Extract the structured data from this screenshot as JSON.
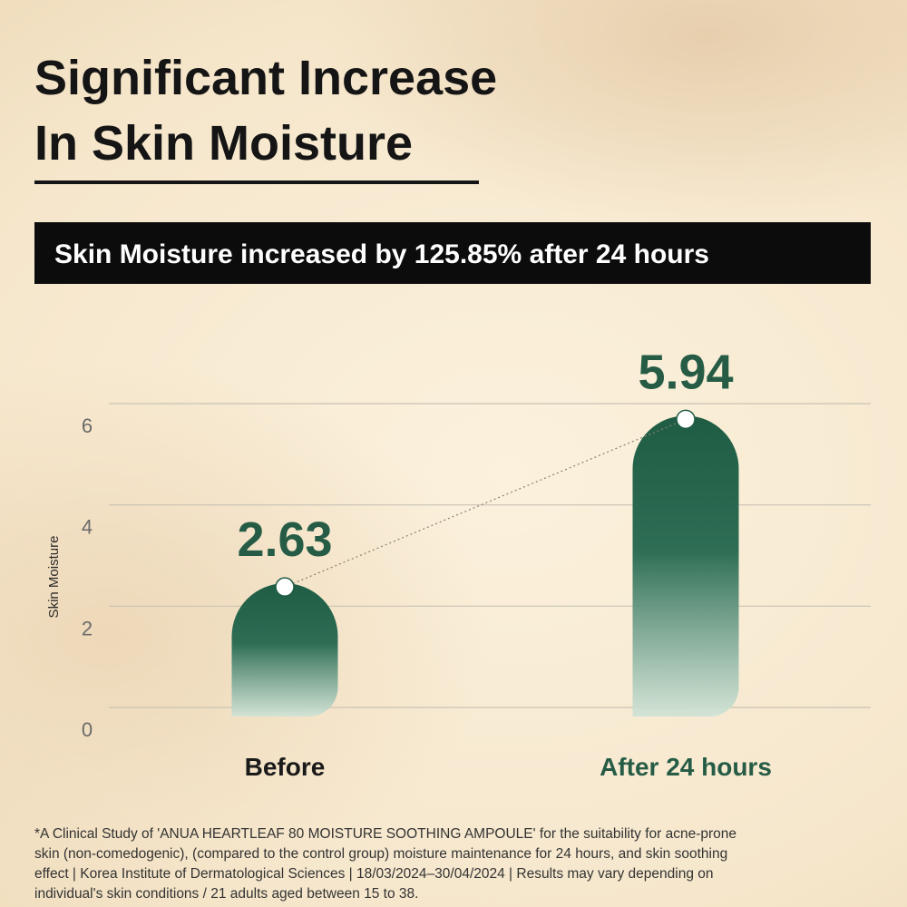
{
  "chart_data": {
    "type": "bar",
    "title": [
      "Significant Increase",
      "In Skin Moisture"
    ],
    "subtitle": "Skin Moisture increased by 125.85% after 24 hours",
    "y_label": "Skin Moisture",
    "categories": [
      "Before",
      "After 24 hours"
    ],
    "category_colors": [
      "#1a1a1a",
      "#265c46"
    ],
    "values": [
      2.63,
      5.94
    ],
    "color": "#1f5c44",
    "ylim": [
      0,
      6
    ],
    "yticks": [
      0,
      2,
      4,
      6
    ],
    "grid": true,
    "footnote": [
      "*A Clinical Study of 'ANUA HEARTLEAF 80 MOISTURE SOOTHING AMPOULE' for the suitability for acne-prone",
      "skin (non-comedogenic), (compared to the control group) moisture maintenance for 24 hours, and skin soothing",
      "effect | Korea Institute of Dermatological Sciences | 18/03/2024–30/04/2024 | Results may vary depending on",
      "individual's skin conditions / 21 adults aged between 15 to 38."
    ]
  }
}
